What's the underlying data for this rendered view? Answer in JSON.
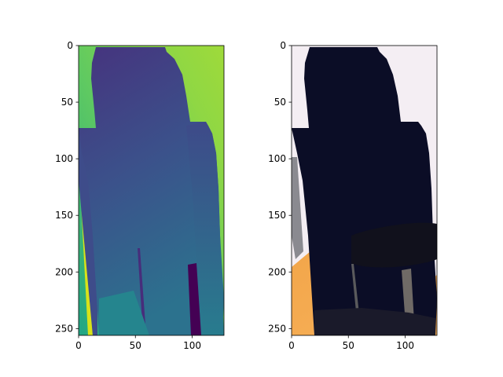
{
  "chart_data": [
    {
      "type": "heatmap",
      "colormap": "viridis",
      "title": "",
      "xlabel": "",
      "ylabel": "",
      "xlim": [
        0,
        128
      ],
      "ylim": [
        256,
        0
      ],
      "x_ticks": [
        0,
        50,
        100
      ],
      "y_ticks": [
        0,
        50,
        100,
        150,
        200,
        250
      ],
      "x_tick_labels": [
        "0",
        "50",
        "100"
      ],
      "y_tick_labels": [
        "0",
        "50",
        "100",
        "150",
        "200",
        "250"
      ]
    },
    {
      "type": "heatmap",
      "title": "",
      "xlabel": "",
      "ylabel": "",
      "xlim": [
        0,
        128
      ],
      "ylim": [
        256,
        0
      ],
      "x_ticks": [
        0,
        50,
        100
      ],
      "y_ticks": [
        0,
        50,
        100,
        150,
        200,
        250
      ],
      "x_tick_labels": [
        "0",
        "50",
        "100"
      ],
      "y_tick_labels": [
        "0",
        "50",
        "100",
        "150",
        "200",
        "250"
      ]
    }
  ]
}
